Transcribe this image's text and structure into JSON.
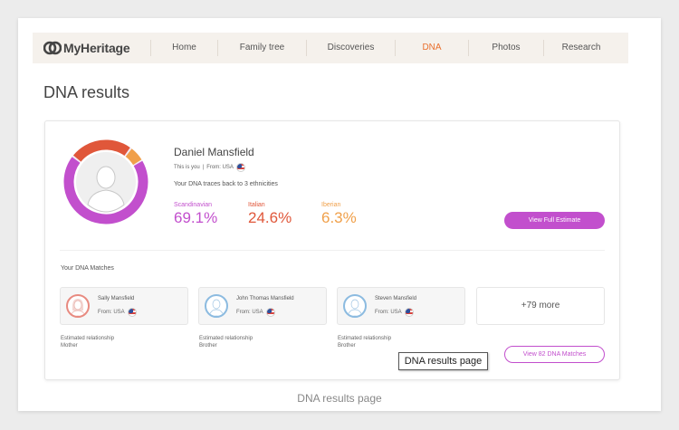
{
  "nav": {
    "logo": "MyHeritage",
    "items": [
      {
        "label": "Home",
        "active": false
      },
      {
        "label": "Family tree",
        "active": false
      },
      {
        "label": "Discoveries",
        "active": false
      },
      {
        "label": "DNA",
        "active": true
      },
      {
        "label": "Photos",
        "active": false
      },
      {
        "label": "Research",
        "active": false
      }
    ]
  },
  "page_title": "DNA results",
  "profile": {
    "name": "Daniel Mansfield",
    "this_is_you": "This is you",
    "from": "From: USA",
    "traces": "Your DNA traces back to 3 ethnicities"
  },
  "ethnicities": [
    {
      "name": "Scandinavian",
      "percent": "69.1%",
      "color": "#c24fcd"
    },
    {
      "name": "Italian",
      "percent": "24.6%",
      "color": "#e0573a"
    },
    {
      "name": "Iberian",
      "percent": "6.3%",
      "color": "#f0a04a"
    }
  ],
  "view_full_estimate": "View Full Estimate",
  "matches": {
    "title": "Your DNA Matches",
    "items": [
      {
        "name": "Sally Mansfield",
        "from": "From: USA",
        "relationship_label": "Estimated relationship",
        "relationship": "Mother",
        "avatar_color": "#e88a80"
      },
      {
        "name": "John Thomas Mansfield",
        "from": "From: USA",
        "relationship_label": "Estimated relationship",
        "relationship": "Brother",
        "avatar_color": "#8cbbe0"
      },
      {
        "name": "Steven Mansfield",
        "from": "From: USA",
        "relationship_label": "Estimated relationship",
        "relationship": "Brother",
        "avatar_color": "#8cbbe0"
      }
    ],
    "more": "+79 more",
    "view_button": "View 82 DNA Matches"
  },
  "tooltip": "DNA results page",
  "caption": "DNA results page"
}
